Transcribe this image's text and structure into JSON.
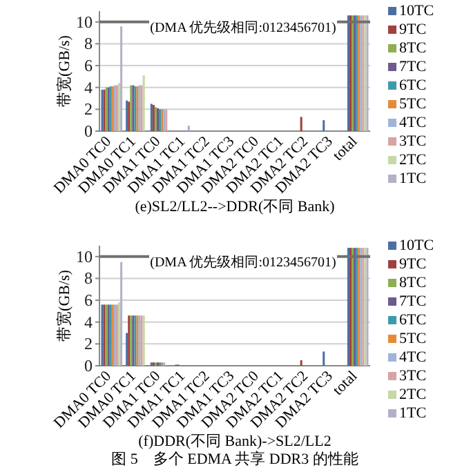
{
  "chart_data": [
    {
      "type": "bar",
      "title": "(e)SL2/LL2-->DDR(不同 Bank)",
      "ylabel": "带宽(GB/s)",
      "annotations": [
        "(DMA 优先级相同:0123456701)"
      ],
      "categories": [
        "DMA0 TC0",
        "DMA0 TC1",
        "DMA1 TC0",
        "DMA1 TC1",
        "DMA1 TC2",
        "DMA1 TC3",
        "DMA2 TC0",
        "DMA2 TC1",
        "DMA2 TC2",
        "DMA2 TC3",
        "total"
      ],
      "ylim": [
        0,
        11
      ],
      "yticks": [
        0,
        2,
        4,
        6,
        8,
        10
      ],
      "grid": "y",
      "legend": "right",
      "ref_lines": [
        {
          "axis": "y",
          "value": 10,
          "color": "#707070"
        }
      ],
      "series": [
        {
          "name": "10TC",
          "color": "#4a6fa5",
          "values": [
            3.8,
            2.8,
            2.5,
            0,
            0,
            0,
            0,
            0,
            0,
            1.0,
            10.6
          ]
        },
        {
          "name": "9TC",
          "color": "#a0413c",
          "values": [
            3.8,
            2.7,
            2.4,
            0,
            0,
            0,
            0,
            0,
            1.3,
            0,
            10.6
          ]
        },
        {
          "name": "8TC",
          "color": "#8fae4f",
          "values": [
            4.0,
            4.2,
            2.2,
            0,
            0,
            0,
            0,
            0,
            0,
            0,
            10.6
          ]
        },
        {
          "name": "7TC",
          "color": "#6d5a8f",
          "values": [
            4.0,
            4.2,
            2.1,
            0,
            0,
            0,
            0,
            0,
            0,
            0,
            10.6
          ]
        },
        {
          "name": "6TC",
          "color": "#3d9aaa",
          "values": [
            4.1,
            4.1,
            2.0,
            0,
            0,
            0,
            0,
            0,
            0,
            0,
            10.6
          ]
        },
        {
          "name": "5TC",
          "color": "#e8883a",
          "values": [
            4.1,
            4.1,
            2.0,
            0,
            0,
            0,
            0,
            0,
            0,
            0,
            10.6
          ]
        },
        {
          "name": "4TC",
          "color": "#9fb4d8",
          "values": [
            4.2,
            4.2,
            2.0,
            0.5,
            0,
            0,
            0,
            0,
            0,
            0,
            10.6
          ]
        },
        {
          "name": "3TC",
          "color": "#d9a3a3",
          "values": [
            4.2,
            4.2,
            2.0,
            0,
            0,
            0,
            0,
            0,
            0,
            0,
            10.6
          ]
        },
        {
          "name": "2TC",
          "color": "#c6d8a4",
          "values": [
            4.4,
            5.1,
            0,
            0,
            0,
            0,
            0,
            0,
            0,
            0,
            10.6
          ]
        },
        {
          "name": "1TC",
          "color": "#b6afc8",
          "values": [
            9.6,
            0,
            0,
            0,
            0,
            0,
            0,
            0,
            0,
            0,
            10.6
          ]
        }
      ]
    },
    {
      "type": "bar",
      "title": "(f)DDR(不同 Bank)->SL2/LL2",
      "ylabel": "带宽(GB/s)",
      "annotations": [
        "(DMA 优先级相同:0123456701)",
        "图 5　多个 EDMA 共享 DDR3 的性能"
      ],
      "categories": [
        "DMA0 TC0",
        "DMA0 TC1",
        "DMA1 TC0",
        "DMA1 TC1",
        "DMA1 TC2",
        "DMA1 TC3",
        "DMA2 TC0",
        "DMA2 TC1",
        "DMA2 TC2",
        "DMA2 TC3",
        "total"
      ],
      "ylim": [
        0,
        11
      ],
      "yticks": [
        0,
        2,
        4,
        6,
        8,
        10
      ],
      "grid": "y",
      "legend": "right",
      "ref_lines": [
        {
          "axis": "y",
          "value": 10,
          "color": "#707070"
        }
      ],
      "series": [
        {
          "name": "10TC",
          "color": "#4a6fa5",
          "values": [
            5.6,
            3.0,
            0.3,
            0.1,
            0,
            0,
            0,
            0,
            0,
            1.3,
            10.8
          ]
        },
        {
          "name": "9TC",
          "color": "#a0413c",
          "values": [
            5.6,
            4.6,
            0.3,
            0.1,
            0,
            0,
            0,
            0,
            0.5,
            0,
            10.8
          ]
        },
        {
          "name": "8TC",
          "color": "#8fae4f",
          "values": [
            5.6,
            4.6,
            0.3,
            null,
            0,
            0,
            0,
            0,
            0,
            0,
            10.8
          ]
        },
        {
          "name": "7TC",
          "color": "#6d5a8f",
          "values": [
            5.6,
            4.6,
            0.3,
            null,
            0,
            0,
            0,
            0,
            0,
            0,
            10.8
          ]
        },
        {
          "name": "6TC",
          "color": "#3d9aaa",
          "values": [
            5.6,
            4.6,
            0.3,
            0,
            0,
            0,
            0,
            0,
            0,
            0,
            10.8
          ]
        },
        {
          "name": "5TC",
          "color": "#e8883a",
          "values": [
            5.6,
            4.6,
            0.3,
            0,
            0,
            0,
            0,
            0,
            0,
            0,
            10.8
          ]
        },
        {
          "name": "4TC",
          "color": "#9fb4d8",
          "values": [
            5.6,
            4.6,
            0.3,
            0,
            0,
            0,
            0,
            0,
            0,
            0,
            10.8
          ]
        },
        {
          "name": "3TC",
          "color": "#d9a3a3",
          "values": [
            5.6,
            4.6,
            0,
            0,
            0,
            0,
            0,
            0,
            0,
            0,
            10.8
          ]
        },
        {
          "name": "2TC",
          "color": "#c6d8a4",
          "values": [
            5.8,
            4.6,
            0,
            0,
            0,
            0,
            0,
            0,
            0,
            0,
            10.8
          ]
        },
        {
          "name": "1TC",
          "color": "#b6afc8",
          "values": [
            9.5,
            0,
            0,
            0,
            0,
            0,
            0,
            0,
            0,
            0,
            10.8
          ]
        }
      ]
    }
  ]
}
